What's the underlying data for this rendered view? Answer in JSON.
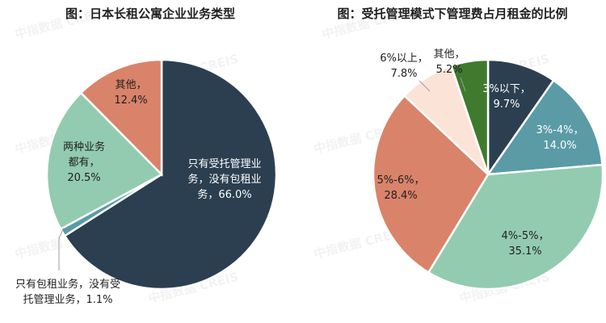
{
  "watermark": "中指数据 CREIS",
  "chart_data": [
    {
      "type": "pie",
      "title": "图：日本长租公寓企业业务类型",
      "slices": [
        {
          "label": "只有受托管理业务，没有包租业务，66.0%",
          "value": 66.0,
          "color": "#2b3f50"
        },
        {
          "label": "只有包租业务，没有受托管理业务，1.1%",
          "value": 1.1,
          "color": "#5a9ba6"
        },
        {
          "label": "两种业务都有，20.5%",
          "value": 20.5,
          "color": "#93cbb0"
        },
        {
          "label": "其他，12.4%",
          "value": 12.4,
          "color": "#d9836a"
        }
      ],
      "labels_text": {
        "s0": [
          "只有受托管理业",
          "务，没有包租业",
          "务，66.0%"
        ],
        "s1": [
          "只有包租业务，没有受",
          "托管理业务，1.1%"
        ],
        "s2": [
          "两种业务",
          "都有，",
          "20.5%"
        ],
        "s3": [
          "其他，",
          "12.4%"
        ]
      }
    },
    {
      "type": "pie",
      "title": "图：受托管理模式下管理费占月租金的比例",
      "slices": [
        {
          "label": "3%以下，9.7%",
          "value": 9.7,
          "color": "#2b3f50"
        },
        {
          "label": "3%-4%，14.0%",
          "value": 14.0,
          "color": "#5a9ba6"
        },
        {
          "label": "4%-5%，35.1%",
          "value": 35.1,
          "color": "#93cbb0"
        },
        {
          "label": "5%-6%，28.4%",
          "value": 28.4,
          "color": "#d9836a"
        },
        {
          "label": "6%以上，7.8%",
          "value": 7.8,
          "color": "#fbe3d8"
        },
        {
          "label": "其他，5.2%",
          "value": 5.2,
          "color": "#3f7a2e"
        }
      ],
      "labels_text": {
        "s0": [
          "3%以下，",
          "9.7%"
        ],
        "s1": [
          "3%-4%，",
          "14.0%"
        ],
        "s2": [
          "4%-5%，",
          "35.1%"
        ],
        "s3": [
          "5%-6%，",
          "28.4%"
        ],
        "s4": [
          "6%以上，",
          "7.8%"
        ],
        "s5": [
          "其他，",
          "5.2%"
        ]
      }
    }
  ]
}
